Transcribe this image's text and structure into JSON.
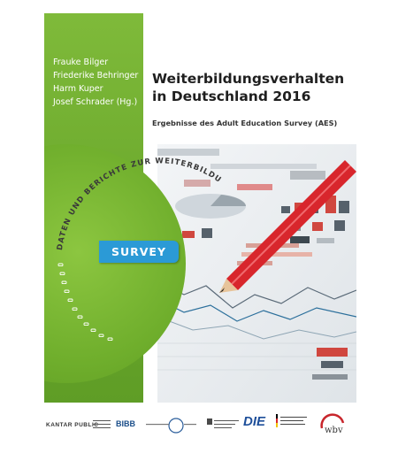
{
  "authors": [
    "Frauke Bilger",
    "Friederike Behringer",
    "Harm Kuper",
    "Josef Schrader (Hg.)"
  ],
  "title_line1": "Weiterbildungsverhalten",
  "title_line2": "in Deutschland 2016",
  "subtitle": "Ergebnisse des Adult Education Survey (AES)",
  "series": "DATEN UND BERICHTE ZUR WEITERBILDUNG",
  "badge": "SURVEY",
  "logos": {
    "kantar": "KANTAR PUBLIC",
    "bibb": "BIBB",
    "fu": "Freie Universität Berlin",
    "jlu": "JUSTUS-LIEBIG-UNIVERSITÄT GIESSEN",
    "die": "DIE",
    "bmbf": "Bundesministerium für Bildung und Forschung",
    "wbv": "wbv"
  },
  "colors": {
    "green": "#6aa82c",
    "blue": "#2b9ad6",
    "red": "#d8262c"
  }
}
